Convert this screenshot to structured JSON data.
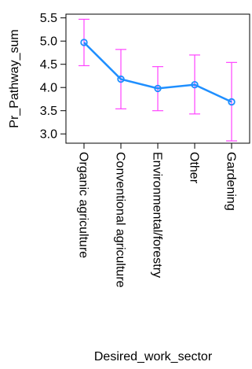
{
  "chart_data": {
    "type": "line",
    "title": "",
    "xlabel": "Desired_work_sector",
    "ylabel": "Pr_Pathway_sum",
    "categories": [
      "Organic agriculture",
      "Conventional agriculture",
      "Environmental/forestry",
      "Other",
      "Gardening"
    ],
    "series": [
      {
        "values": [
          4.97,
          4.18,
          3.98,
          4.06,
          3.69
        ],
        "ci_lower": [
          4.47,
          3.54,
          3.5,
          3.43,
          2.85
        ],
        "ci_upper": [
          5.47,
          4.82,
          4.45,
          4.7,
          4.54
        ]
      }
    ],
    "yticks": [
      "3.0",
      "3.5",
      "4.0",
      "4.5",
      "5.0",
      "5.5"
    ],
    "ylim": [
      2.8,
      5.58
    ],
    "grid": false,
    "line_color": "#1f8fff",
    "errorbar_color": "#ff44ff"
  }
}
